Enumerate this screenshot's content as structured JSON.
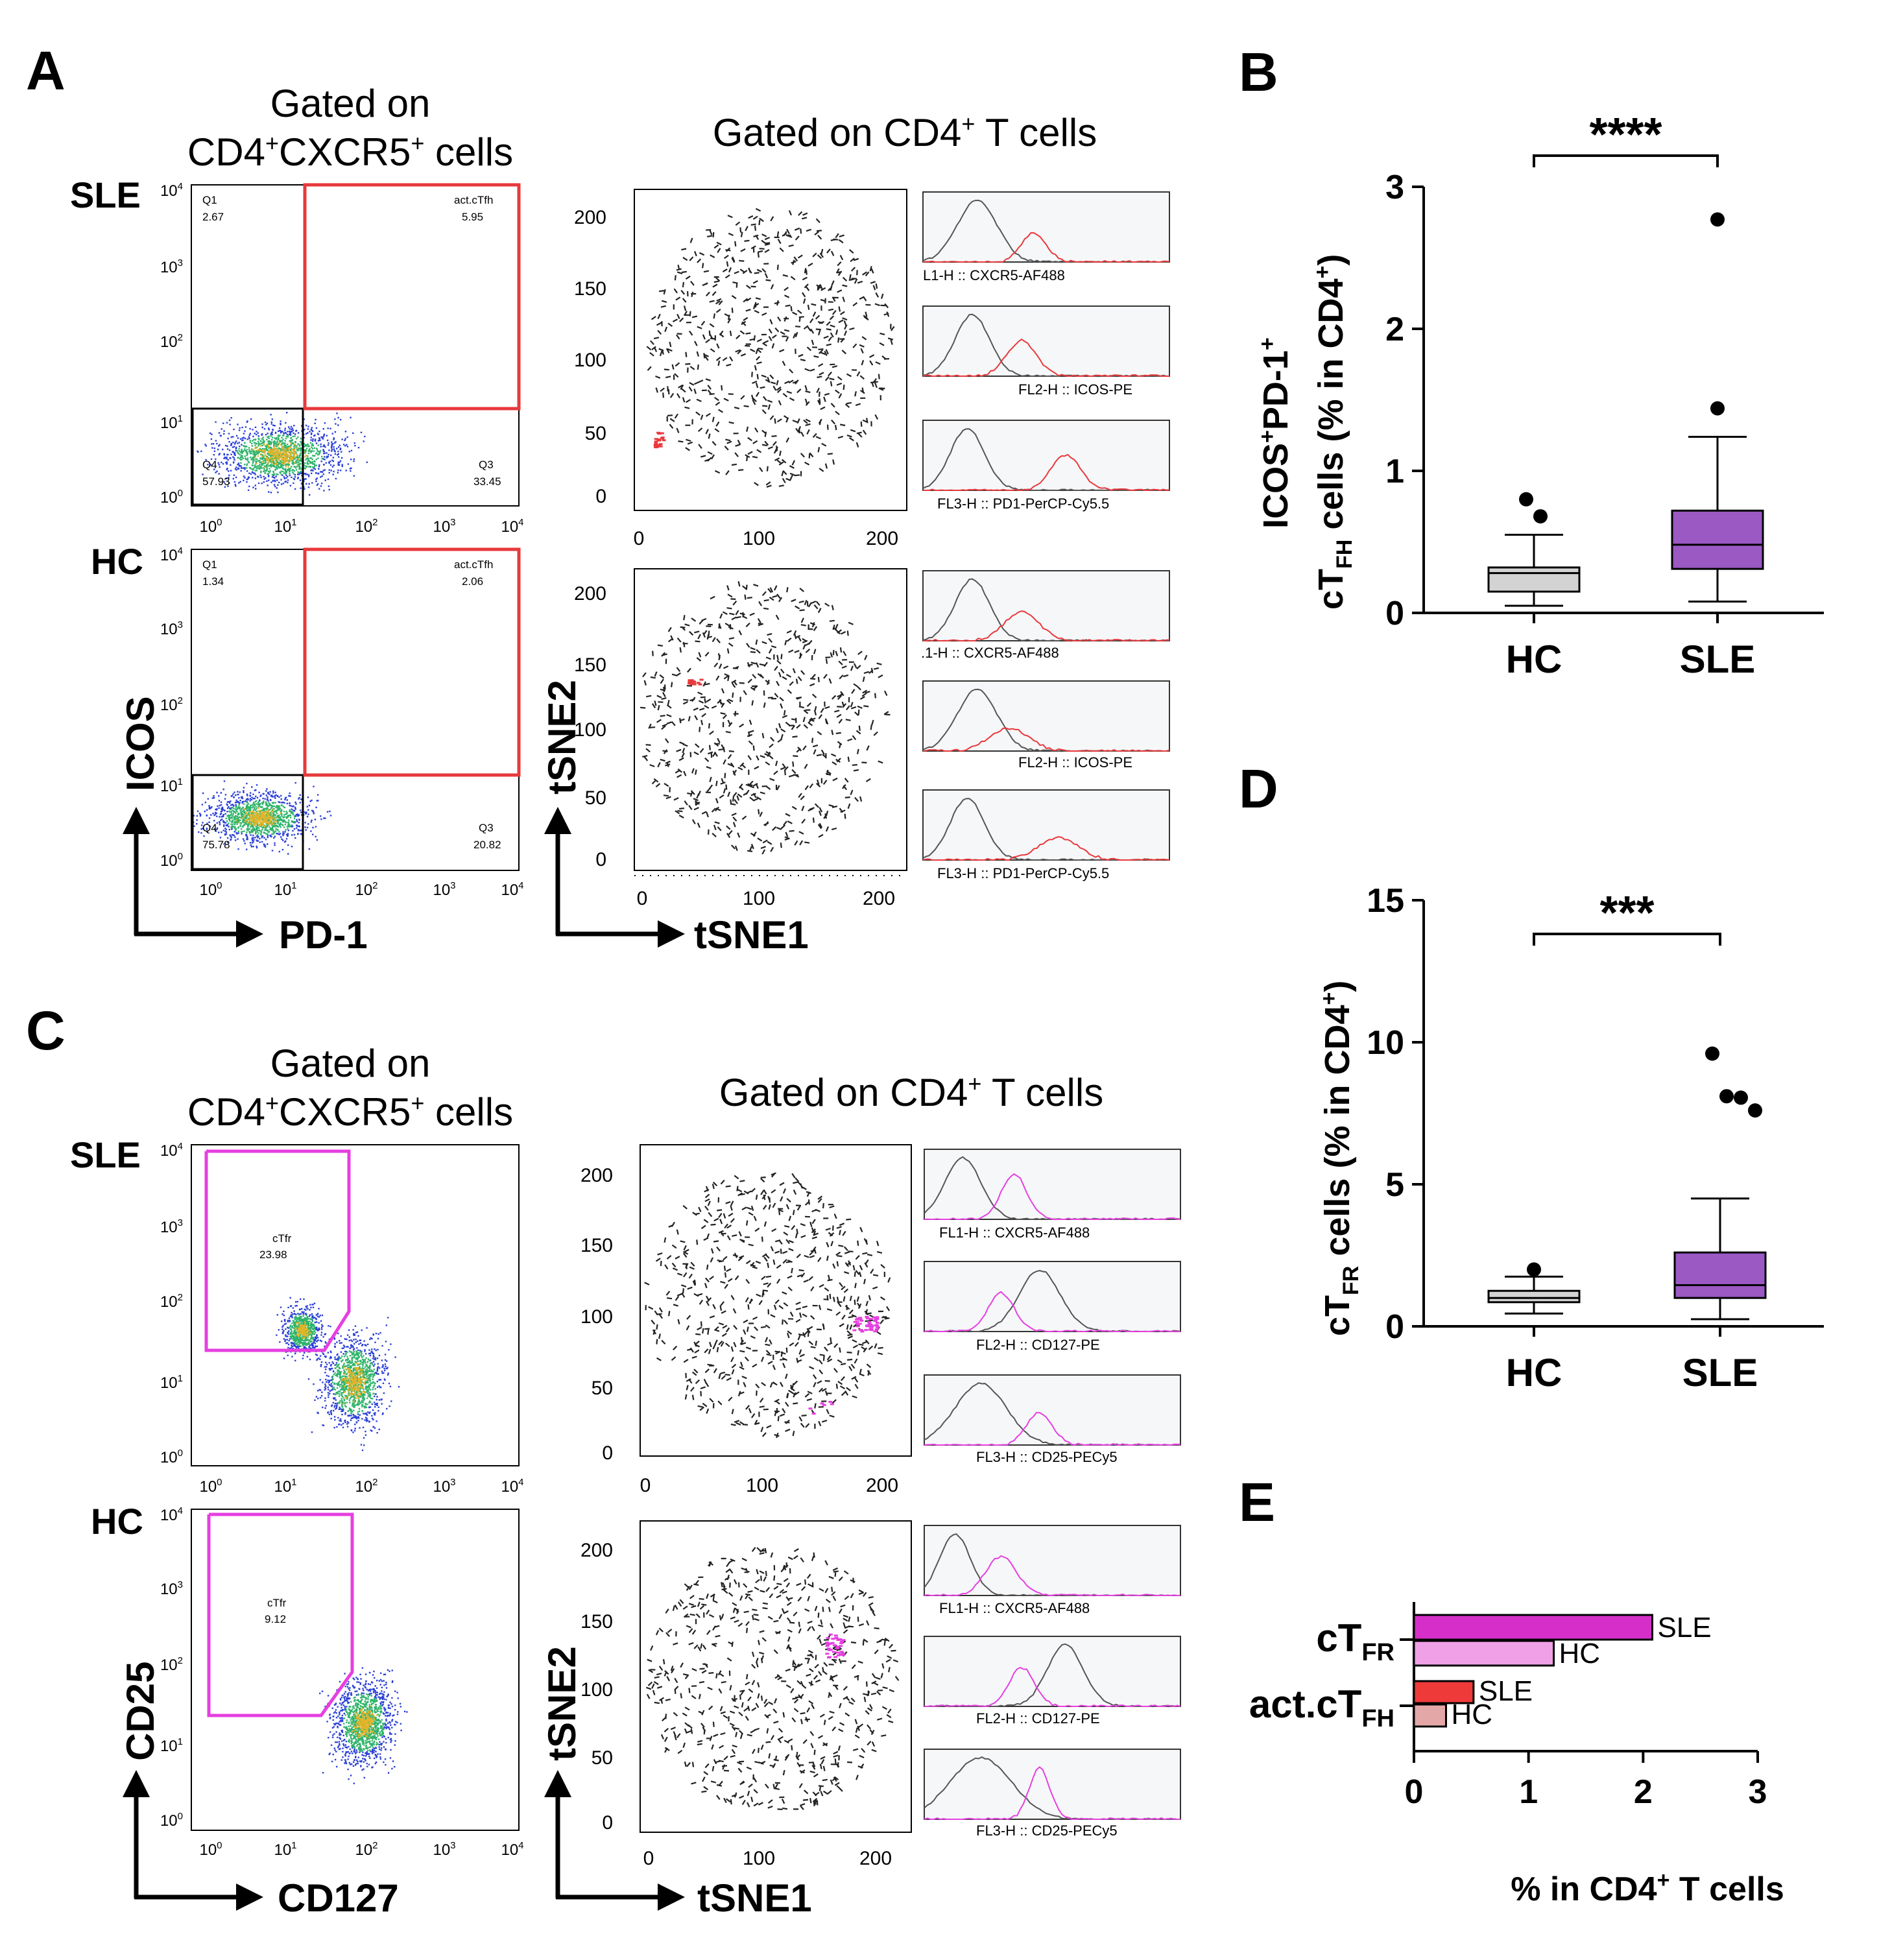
{
  "panel_letters": {
    "A": "A",
    "B": "B",
    "C": "C",
    "D": "D",
    "E": "E"
  },
  "panel_A": {
    "gate_title_line1": "Gated on",
    "gate_title_line2_prefix": "CD4",
    "gate_title_line2_sup": "+",
    "gate_title_line2_suffix": "CXCR5",
    "gate_title_line2_sup2": "+",
    "gate_title_line2_end": " cells",
    "tsne_title_prefix": "Gated on CD4",
    "tsne_title_sup": "+",
    "tsne_title_suffix": " T cells",
    "row_labels": [
      "SLE",
      "HC"
    ],
    "x_axis": "PD-1",
    "y_axis": "ICOS",
    "tsne_x": "tSNE1",
    "tsne_y": "tSNE2",
    "flow_ticks": [
      "10",
      "10",
      "10",
      "10",
      "10"
    ],
    "flow_tick_exps": [
      "0",
      "1",
      "2",
      "3",
      "4"
    ],
    "tsne_ticks_y": [
      "200",
      "150",
      "100",
      "50",
      "0"
    ],
    "tsne_ticks_x": [
      "0",
      "100",
      "200"
    ],
    "sle_quadrants": {
      "q1_name": "Q1",
      "q1_val": "2.67",
      "gate_name": "act.cTfh",
      "gate_val": "5.95",
      "q4_name": "Q4",
      "q4_val": "57.93",
      "q3_name": "Q3",
      "q3_val": "33.45"
    },
    "hc_quadrants": {
      "q1_name": "Q1",
      "q1_val": "1.34",
      "gate_name": "act.cTfh",
      "gate_val": "2.06",
      "q4_name": "Q4",
      "q4_val": "75.78",
      "q3_name": "Q3",
      "q3_val": "20.82"
    },
    "sle_hists": [
      "L1-H :: CXCR5-AF488",
      "FL2-H :: ICOS-PE",
      "FL3-H :: PD1-PerCP-Cy5.5"
    ],
    "hc_hists": [
      ".1-H :: CXCR5-AF488",
      "FL2-H :: ICOS-PE",
      "FL3-H :: PD1-PerCP-Cy5.5"
    ]
  },
  "panel_C": {
    "row_labels": [
      "SLE",
      "HC"
    ],
    "x_axis": "CD127",
    "y_axis": "CD25",
    "tsne_x": "tSNE1",
    "tsne_y": "tSNE2",
    "sle_gate": {
      "name": "cTfr",
      "val": "23.98"
    },
    "hc_gate": {
      "name": "cTfr",
      "val": "9.12"
    },
    "sle_hists": [
      "FL1-H :: CXCR5-AF488",
      "FL2-H :: CD127-PE",
      "FL3-H :: CD25-PECy5"
    ],
    "hc_hists": [
      "FL1-H :: CXCR5-AF488",
      "FL2-H :: CD127-PE",
      "FL3-H :: CD25-PECy5"
    ]
  },
  "colors": {
    "hc_box": "#d3d3d3",
    "sle_box": "#9b59c4",
    "gate_red": "#e8393b",
    "gate_magenta": "#e63fe0",
    "sle_ctfr_bar": "#d62fc9",
    "hc_ctfr_bar": "#f0a0e6",
    "sle_act_bar": "#ef3a3a",
    "hc_act_bar": "#e3a7a7"
  },
  "chart_data": [
    {
      "panel": "B",
      "type": "box",
      "ylabel_main": "ICOS",
      "ylabel_sup1": "+",
      "ylabel_mid": "PD-1",
      "ylabel_sup2": "+",
      "ylabel_line2_a": "cT",
      "ylabel_line2_sub": "FH",
      "ylabel_line2_b": " cells (% in CD4",
      "ylabel_line2_sup": "+",
      "ylabel_line2_c": ")",
      "ylim": [
        0,
        3
      ],
      "yticks": [
        0,
        1,
        2,
        3
      ],
      "categories": [
        "HC",
        "SLE"
      ],
      "boxes": [
        {
          "name": "HC",
          "whisker_low": 0.05,
          "q1": 0.15,
          "median": 0.28,
          "q3": 0.32,
          "whisker_high": 0.55,
          "outliers": [
            0.8,
            0.68
          ]
        },
        {
          "name": "SLE",
          "whisker_low": 0.08,
          "q1": 0.31,
          "median": 0.48,
          "q3": 0.72,
          "whisker_high": 1.24,
          "outliers": [
            2.77,
            1.44
          ]
        }
      ],
      "significance": "****"
    },
    {
      "panel": "D",
      "type": "box",
      "ylabel_a": "cT",
      "ylabel_sub": "FR",
      "ylabel_b": " cells (% in CD4",
      "ylabel_sup": "+",
      "ylabel_c": ")",
      "ylim": [
        0,
        15
      ],
      "yticks": [
        0,
        5,
        10,
        15
      ],
      "categories": [
        "HC",
        "SLE"
      ],
      "boxes": [
        {
          "name": "HC",
          "whisker_low": 0.45,
          "q1": 0.85,
          "median": 1.0,
          "q3": 1.25,
          "whisker_high": 1.75,
          "outliers": [
            2.0
          ]
        },
        {
          "name": "SLE",
          "whisker_low": 0.25,
          "q1": 1.0,
          "median": 1.45,
          "q3": 2.6,
          "whisker_high": 4.5,
          "outliers": [
            9.6,
            8.1,
            8.05,
            7.6
          ]
        }
      ],
      "significance": "***"
    },
    {
      "panel": "E",
      "type": "bar",
      "orientation": "horizontal",
      "xlim": [
        0,
        3
      ],
      "xticks": [
        0,
        1,
        2,
        3
      ],
      "xlabel_a": "% in CD4",
      "xlabel_sup": "+",
      "xlabel_b": " T cells",
      "groups": [
        {
          "label_a": "cT",
          "label_sub": "FR",
          "bars": [
            {
              "name": "SLE",
              "value": 2.08
            },
            {
              "name": "HC",
              "value": 1.22
            }
          ]
        },
        {
          "label_a": "act.cT",
          "label_sub": "FH",
          "bars": [
            {
              "name": "SLE",
              "value": 0.52
            },
            {
              "name": "HC",
              "value": 0.28
            }
          ]
        }
      ]
    }
  ]
}
